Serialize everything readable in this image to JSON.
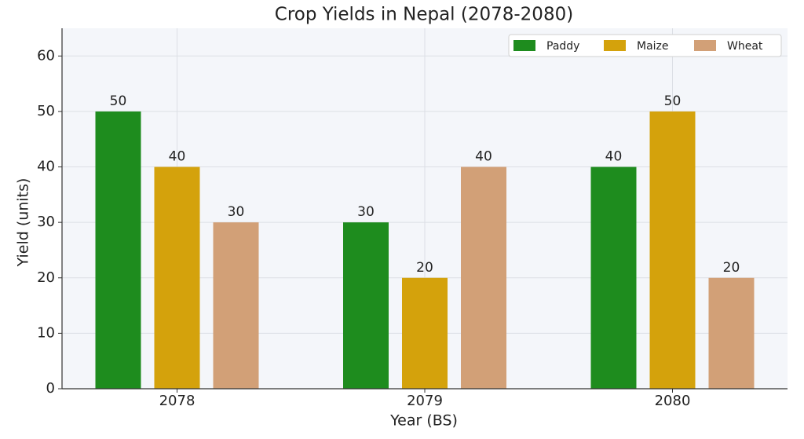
{
  "chart_data": {
    "type": "bar",
    "title": "Crop Yields in Nepal (2078-2080)",
    "x_label": "Year (BS)",
    "y_label": "Yield (units)",
    "categories": [
      "2078",
      "2079",
      "2080"
    ],
    "series": [
      {
        "name": "Paddy",
        "color": "#1e8c1e",
        "values": [
          50,
          30,
          40
        ]
      },
      {
        "name": "Maize",
        "color": "#d4a20c",
        "values": [
          40,
          20,
          50
        ]
      },
      {
        "name": "Wheat",
        "color": "#d2a077",
        "values": [
          30,
          40,
          20
        ]
      }
    ],
    "ylim": [
      0,
      65
    ],
    "yticks": [
      0,
      10,
      20,
      30,
      40,
      50,
      60
    ],
    "grid": true,
    "legend": "upper right",
    "value_labels_shown": true
  }
}
